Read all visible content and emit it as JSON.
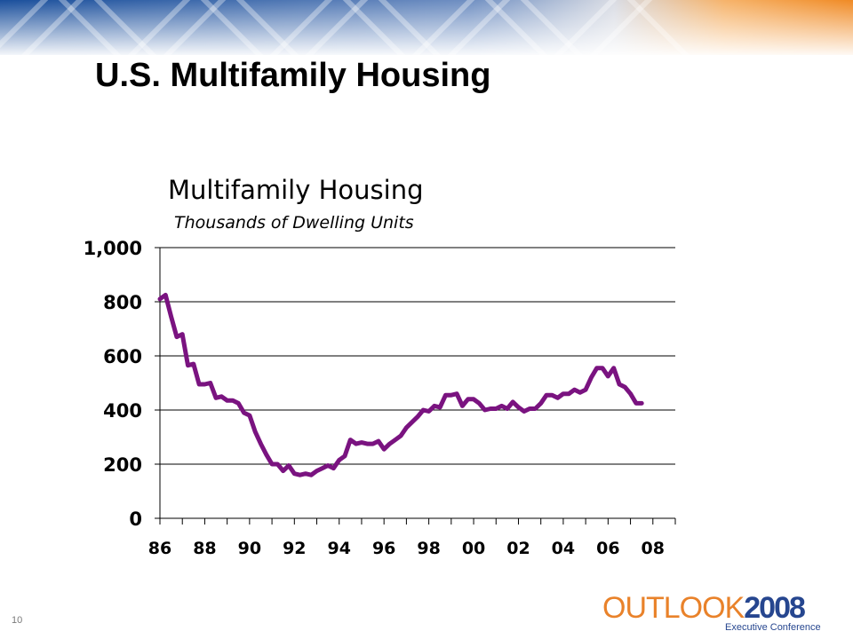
{
  "slide": {
    "title": "U.S. Multifamily Housing",
    "page_number": "10"
  },
  "logo": {
    "word": "OUTLOOK",
    "year": "2008",
    "subtitle": "Executive Conference"
  },
  "colors": {
    "header_blue": "#1a4f9c",
    "header_orange": "#f08a24",
    "series_line": "#7a1380",
    "grid": "#000000"
  },
  "chart_data": {
    "type": "line",
    "title": "Multifamily Housing",
    "subtitle": "Thousands of Dwelling Units",
    "xlabel": "",
    "ylabel": "",
    "xlim": [
      1986,
      2009
    ],
    "ylim": [
      0,
      1000
    ],
    "grid": true,
    "y_ticks": [
      0,
      200,
      400,
      600,
      800,
      1000
    ],
    "y_tick_labels": [
      "0",
      "200",
      "400",
      "600",
      "800",
      "1,000"
    ],
    "x_ticks": [
      1986,
      1988,
      1990,
      1992,
      1994,
      1996,
      1998,
      2000,
      2002,
      2004,
      2006,
      2008
    ],
    "x_tick_labels": [
      "86",
      "88",
      "90",
      "92",
      "94",
      "96",
      "98",
      "00",
      "02",
      "04",
      "06",
      "08"
    ],
    "series": [
      {
        "name": "",
        "x": [
          1986.0,
          1986.25,
          1986.5,
          1986.75,
          1987.0,
          1987.25,
          1987.5,
          1987.75,
          1988.0,
          1988.25,
          1988.5,
          1988.75,
          1989.0,
          1989.25,
          1989.5,
          1989.75,
          1990.0,
          1990.25,
          1990.5,
          1990.75,
          1991.0,
          1991.25,
          1991.5,
          1991.75,
          1992.0,
          1992.25,
          1992.5,
          1992.75,
          1993.0,
          1993.25,
          1993.5,
          1993.75,
          1994.0,
          1994.25,
          1994.5,
          1994.75,
          1995.0,
          1995.25,
          1995.5,
          1995.75,
          1996.0,
          1996.25,
          1996.5,
          1996.75,
          1997.0,
          1997.25,
          1997.5,
          1997.75,
          1998.0,
          1998.25,
          1998.5,
          1998.75,
          1999.0,
          1999.25,
          1999.5,
          1999.75,
          2000.0,
          2000.25,
          2000.5,
          2000.75,
          2001.0,
          2001.25,
          2001.5,
          2001.75,
          2002.0,
          2002.25,
          2002.5,
          2002.75,
          2003.0,
          2003.25,
          2003.5,
          2003.75,
          2004.0,
          2004.25,
          2004.5,
          2004.75,
          2005.0,
          2005.25,
          2005.5,
          2005.75,
          2006.0,
          2006.25,
          2006.5,
          2006.75,
          2007.0,
          2007.25,
          2007.5
        ],
        "values": [
          810,
          825,
          745,
          670,
          680,
          565,
          570,
          495,
          495,
          500,
          445,
          450,
          435,
          435,
          425,
          390,
          380,
          320,
          275,
          235,
          200,
          200,
          175,
          195,
          165,
          160,
          165,
          160,
          175,
          185,
          195,
          185,
          215,
          230,
          290,
          275,
          280,
          275,
          275,
          285,
          255,
          275,
          290,
          305,
          335,
          355,
          375,
          400,
          395,
          415,
          410,
          455,
          455,
          460,
          415,
          440,
          440,
          425,
          400,
          405,
          405,
          415,
          405,
          430,
          410,
          395,
          405,
          405,
          425,
          455,
          455,
          445,
          460,
          460,
          475,
          465,
          475,
          520,
          555,
          555,
          525,
          555,
          495,
          485,
          460,
          425,
          425
        ]
      }
    ]
  }
}
